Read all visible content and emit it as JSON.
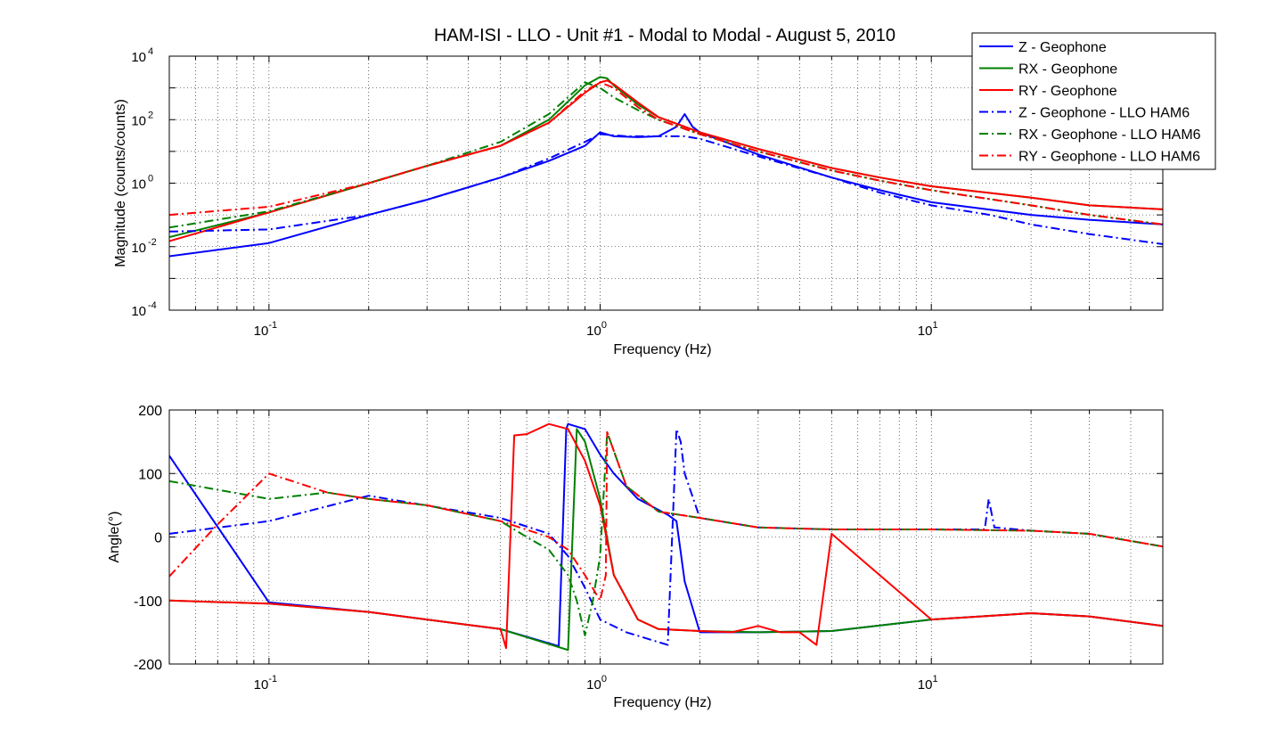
{
  "figure": {
    "title": "HAM-ISI - LLO - Unit #1 - Modal to Modal - August 5, 2010"
  },
  "series_styles": [
    {
      "name": "Z - Geophone",
      "color": "#0000ff",
      "dash": "solid"
    },
    {
      "name": "RX - Geophone",
      "color": "#008000",
      "dash": "solid"
    },
    {
      "name": "RY - Geophone",
      "color": "#ff0000",
      "dash": "solid"
    },
    {
      "name": "Z - Geophone - LLO HAM6",
      "color": "#0000ff",
      "dash": "dashdot"
    },
    {
      "name": "RX - Geophone - LLO HAM6",
      "color": "#008000",
      "dash": "dashdot"
    },
    {
      "name": "RY - Geophone - LLO HAM6",
      "color": "#ff0000",
      "dash": "dashdot"
    }
  ],
  "chart_data": [
    {
      "type": "line",
      "xscale": "log",
      "yscale": "log",
      "xlabel": "Frequency (Hz)",
      "ylabel": "Magnitude (counts/counts)",
      "xlim": [
        0.05,
        50
      ],
      "ylim": [
        0.0001,
        10000
      ],
      "x_ticks": [
        {
          "value": 0.1,
          "base": "10",
          "exp": "-1"
        },
        {
          "value": 1,
          "base": "10",
          "exp": "0"
        },
        {
          "value": 10,
          "base": "10",
          "exp": "1"
        }
      ],
      "y_ticks": [
        {
          "value": 0.0001,
          "base": "10",
          "exp": "-4"
        },
        {
          "value": 0.01,
          "base": "10",
          "exp": "-2"
        },
        {
          "value": 1,
          "base": "10",
          "exp": "0"
        },
        {
          "value": 100,
          "base": "10",
          "exp": "2"
        },
        {
          "value": 10000,
          "base": "10",
          "exp": "4"
        }
      ],
      "grid": "dotted",
      "legend": "top-right",
      "series": [
        {
          "name": "Z - Geophone",
          "x": [
            0.05,
            0.1,
            0.2,
            0.3,
            0.5,
            0.7,
            0.9,
            1.0,
            1.1,
            1.3,
            1.5,
            1.7,
            1.8,
            1.9,
            2,
            3,
            5,
            7,
            10,
            20,
            30,
            50
          ],
          "y": [
            0.005,
            0.013,
            0.1,
            0.3,
            1.5,
            5,
            15,
            40,
            30,
            28,
            30,
            60,
            150,
            60,
            40,
            8,
            1.5,
            0.6,
            0.25,
            0.1,
            0.07,
            0.05
          ]
        },
        {
          "name": "RX - Geophone",
          "x": [
            0.05,
            0.1,
            0.2,
            0.3,
            0.5,
            0.7,
            0.9,
            1.0,
            1.05,
            1.1,
            1.3,
            1.5,
            2,
            3,
            5,
            7,
            10,
            20,
            30,
            50
          ],
          "y": [
            0.02,
            0.12,
            1,
            3.5,
            15,
            100,
            1200,
            2200,
            2000,
            1200,
            300,
            120,
            40,
            12,
            3,
            1.5,
            0.8,
            0.35,
            0.2,
            0.15
          ]
        },
        {
          "name": "RY - Geophone",
          "x": [
            0.05,
            0.1,
            0.2,
            0.3,
            0.5,
            0.7,
            0.9,
            1.0,
            1.05,
            1.1,
            1.3,
            1.5,
            2,
            3,
            5,
            7,
            10,
            20,
            30,
            50
          ],
          "y": [
            0.015,
            0.12,
            1,
            3.5,
            15,
            80,
            700,
            1500,
            1700,
            1300,
            350,
            120,
            40,
            12,
            3,
            1.5,
            0.8,
            0.35,
            0.2,
            0.15
          ]
        },
        {
          "name": "Z - Geophone - LLO HAM6",
          "x": [
            0.05,
            0.1,
            0.2,
            0.3,
            0.5,
            0.7,
            0.9,
            1.0,
            1.2,
            1.5,
            1.8,
            2,
            3,
            5,
            7,
            10,
            15,
            20,
            30,
            50
          ],
          "y": [
            0.03,
            0.035,
            0.1,
            0.3,
            1.5,
            6,
            20,
            35,
            30,
            30,
            30,
            25,
            7,
            1.5,
            0.5,
            0.2,
            0.1,
            0.05,
            0.025,
            0.012
          ]
        },
        {
          "name": "RX - Geophone - LLO HAM6",
          "x": [
            0.05,
            0.1,
            0.2,
            0.3,
            0.5,
            0.7,
            0.9,
            1.0,
            1.1,
            1.3,
            1.5,
            2,
            3,
            5,
            7,
            10,
            20,
            30,
            50
          ],
          "y": [
            0.04,
            0.13,
            1,
            3.5,
            20,
            150,
            1500,
            1000,
            500,
            200,
            100,
            35,
            10,
            2.5,
            1.2,
            0.6,
            0.2,
            0.1,
            0.05
          ]
        },
        {
          "name": "RY - Geophone - LLO HAM6",
          "x": [
            0.05,
            0.1,
            0.2,
            0.3,
            0.5,
            0.7,
            0.9,
            1.0,
            1.1,
            1.3,
            1.5,
            2,
            3,
            5,
            7,
            10,
            20,
            30,
            50
          ],
          "y": [
            0.1,
            0.18,
            1,
            3.5,
            15,
            80,
            800,
            1500,
            1000,
            250,
            100,
            35,
            10,
            2.5,
            1.2,
            0.6,
            0.2,
            0.1,
            0.05
          ]
        }
      ]
    },
    {
      "type": "line",
      "xscale": "log",
      "yscale": "linear",
      "xlabel": "Frequency (Hz)",
      "ylabel": "Angle(°)",
      "xlim": [
        0.05,
        50
      ],
      "ylim": [
        -200,
        200
      ],
      "x_ticks": [
        {
          "value": 0.1,
          "base": "10",
          "exp": "-1"
        },
        {
          "value": 1,
          "base": "10",
          "exp": "0"
        },
        {
          "value": 10,
          "base": "10",
          "exp": "1"
        }
      ],
      "y_ticks": [
        {
          "value": 200,
          "label": "200"
        },
        {
          "value": 100,
          "label": "100"
        },
        {
          "value": 0,
          "label": "0"
        },
        {
          "value": -100,
          "label": "-100"
        },
        {
          "value": -200,
          "label": "-200"
        }
      ],
      "grid": "dotted",
      "series": [
        {
          "name": "Z - Geophone",
          "x": [
            0.05,
            0.1,
            0.2,
            0.5,
            0.75,
            0.79,
            0.8,
            0.9,
            1.0,
            1.1,
            1.3,
            1.6,
            1.7,
            1.8,
            2,
            3,
            5,
            10,
            20,
            30,
            50
          ],
          "y": [
            128,
            -103,
            -118,
            -145,
            -172,
            170,
            178,
            170,
            130,
            100,
            60,
            35,
            25,
            -70,
            -150,
            -150,
            -148,
            -130,
            -120,
            -125,
            -140
          ]
        },
        {
          "name": "RX - Geophone",
          "x": [
            0.05,
            0.1,
            0.2,
            0.5,
            0.8,
            0.85,
            0.9,
            1.0,
            1.1,
            1.3,
            1.5,
            2,
            3,
            5,
            10,
            20,
            30,
            50
          ],
          "y": [
            -100,
            -105,
            -118,
            -145,
            -178,
            170,
            150,
            60,
            -60,
            -130,
            -145,
            -148,
            -150,
            -148,
            -130,
            -120,
            -125,
            -140
          ]
        },
        {
          "name": "RY - Geophone",
          "x": [
            0.05,
            0.1,
            0.2,
            0.5,
            0.52,
            0.55,
            0.6,
            0.7,
            0.8,
            0.9,
            1.0,
            1.1,
            1.3,
            1.5,
            2,
            2.5,
            3,
            3.5,
            4,
            4.5,
            5,
            10,
            20,
            30,
            50
          ],
          "y": [
            -100,
            -105,
            -118,
            -145,
            -175,
            160,
            162,
            178,
            170,
            120,
            50,
            -60,
            -130,
            -145,
            -148,
            -150,
            -140,
            -150,
            -150,
            -170,
            5,
            -130,
            -120,
            -125,
            -140
          ]
        },
        {
          "name": "Z - Geophone - LLO HAM6",
          "x": [
            0.05,
            0.1,
            0.2,
            0.5,
            0.7,
            0.8,
            0.9,
            1.0,
            1.2,
            1.6,
            1.7,
            1.75,
            1.8,
            2,
            3,
            5,
            10,
            14.5,
            14.9,
            15.5,
            20,
            30,
            50
          ],
          "y": [
            5,
            25,
            65,
            30,
            5,
            -30,
            -80,
            -130,
            -150,
            -170,
            170,
            150,
            100,
            30,
            15,
            12,
            12,
            12,
            60,
            15,
            10,
            5,
            -15
          ]
        },
        {
          "name": "RX - Geophone - LLO HAM6",
          "x": [
            0.05,
            0.1,
            0.15,
            0.2,
            0.3,
            0.5,
            0.6,
            0.7,
            0.8,
            0.85,
            0.9,
            0.95,
            1.0,
            1.05,
            1.2,
            1.5,
            2,
            3,
            5,
            10,
            20,
            30,
            50
          ],
          "y": [
            88,
            60,
            70,
            60,
            50,
            25,
            0,
            -20,
            -60,
            -100,
            -155,
            -100,
            -30,
            165,
            80,
            40,
            30,
            15,
            12,
            12,
            10,
            5,
            -15
          ]
        },
        {
          "name": "RY - Geophone - LLO HAM6",
          "x": [
            0.05,
            0.07,
            0.1,
            0.15,
            0.2,
            0.3,
            0.5,
            0.7,
            0.8,
            0.9,
            1.0,
            1.04,
            1.05,
            1.2,
            1.5,
            2,
            3,
            5,
            10,
            20,
            30,
            50
          ],
          "y": [
            -62,
            20,
            100,
            70,
            60,
            50,
            25,
            0,
            -20,
            -60,
            -100,
            -60,
            165,
            80,
            40,
            30,
            15,
            12,
            12,
            10,
            5,
            -15
          ]
        }
      ]
    }
  ]
}
